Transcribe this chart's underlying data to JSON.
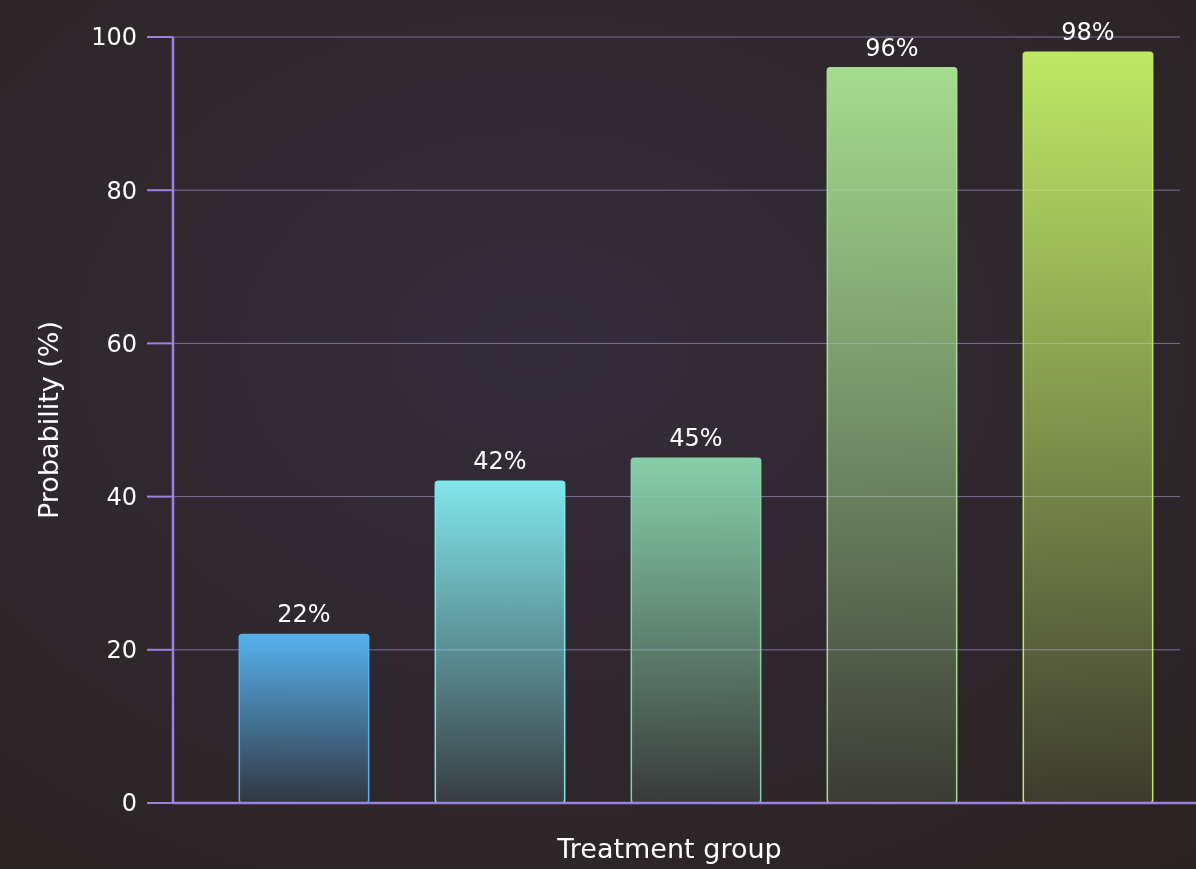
{
  "chart_data": {
    "type": "bar",
    "xlabel": "Treatment group",
    "ylabel": "Probability (%)",
    "categories": [
      null,
      null,
      null,
      null,
      null
    ],
    "values": [
      22,
      42,
      45,
      96,
      98
    ],
    "colors": [
      "#55b0ec",
      "#7fe6ea",
      "#86cfa8",
      "#a5dc8f",
      "#bfe865"
    ],
    "value_labels": [
      "22%",
      "42%",
      "45%",
      "96%",
      "98%"
    ],
    "ylim": [
      0,
      100
    ],
    "yticks": [
      0,
      20,
      40,
      60,
      80,
      100
    ],
    "grid": "y"
  }
}
